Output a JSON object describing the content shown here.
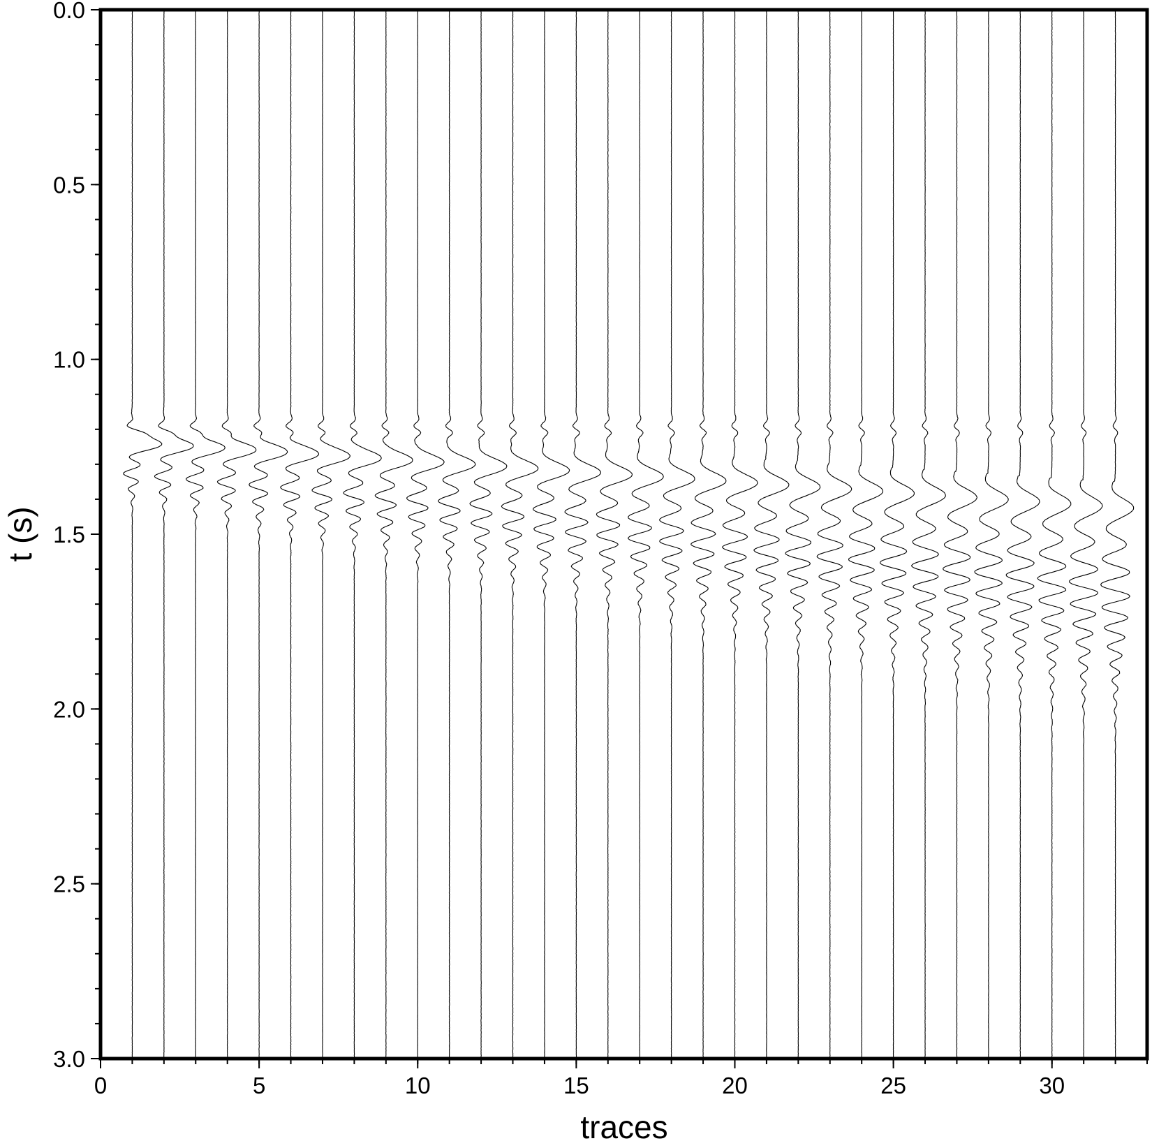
{
  "chart_data": {
    "type": "line",
    "subtype": "seismic-wiggle-traces",
    "title": "",
    "xlabel": "traces",
    "ylabel": "t (s)",
    "xlim": [
      0,
      33
    ],
    "ylim": [
      3.0,
      0.0
    ],
    "y_inverted": true,
    "grid": false,
    "legend": "none",
    "x_ticks": [
      0,
      5,
      10,
      15,
      20,
      25,
      30
    ],
    "x_tick_labels": [
      "0",
      "5",
      "10",
      "15",
      "20",
      "25",
      "30"
    ],
    "x_minor_step": 1,
    "y_ticks": [
      0.0,
      0.5,
      1.0,
      1.5,
      2.0,
      2.5,
      3.0
    ],
    "y_tick_labels": [
      "0.0",
      "0.5",
      "1.0",
      "1.5",
      "2.0",
      "2.5",
      "3.0"
    ],
    "y_minor_step": 0.1,
    "trace_positions": [
      1,
      2,
      3,
      4,
      5,
      6,
      7,
      8,
      9,
      10,
      11,
      12,
      13,
      14,
      15,
      16,
      17,
      18,
      19,
      20,
      21,
      22,
      23,
      24,
      25,
      26,
      27,
      28,
      29,
      30,
      31,
      32
    ],
    "direct_arrival_time_s": 1.2,
    "surface_wave_arrival_start_s": 1.22,
    "surface_wave_arrival_end_s": 1.4,
    "wavelet_duration_s": [
      0.15,
      0.45
    ],
    "stroke_color": "#000000"
  }
}
